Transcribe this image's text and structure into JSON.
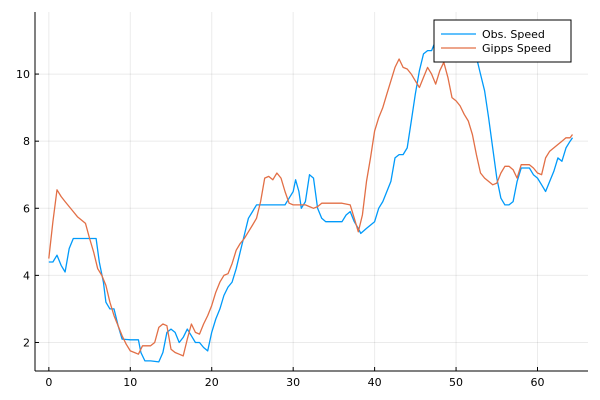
{
  "chart_data": {
    "type": "line",
    "title": "",
    "xlabel": "",
    "ylabel": "",
    "xlim": [
      -1.7,
      66.2
    ],
    "ylim": [
      1.15,
      11.85
    ],
    "x_ticks": [
      0,
      10,
      20,
      30,
      40,
      50,
      60
    ],
    "y_ticks": [
      2,
      4,
      6,
      8,
      10
    ],
    "x_tick_labels": [
      "0",
      "10",
      "20",
      "30",
      "40",
      "50",
      "60"
    ],
    "y_tick_labels": [
      "2",
      "4",
      "6",
      "8",
      "10"
    ],
    "grid": true,
    "legend_position": "top-right",
    "series": [
      {
        "name": "Obs. Speed",
        "color": "#009AFA",
        "points": [
          [
            0,
            4.4
          ],
          [
            0.5,
            4.4
          ],
          [
            1,
            4.6
          ],
          [
            1.5,
            4.3
          ],
          [
            2,
            4.1
          ],
          [
            2.5,
            4.8
          ],
          [
            3,
            5.1
          ],
          [
            4,
            5.1
          ],
          [
            5,
            5.1
          ],
          [
            5.8,
            5.1
          ],
          [
            6.2,
            4.4
          ],
          [
            6.7,
            3.8
          ],
          [
            7,
            3.2
          ],
          [
            7.5,
            3.0
          ],
          [
            8,
            3.0
          ],
          [
            8.5,
            2.5
          ],
          [
            9,
            2.1
          ],
          [
            10,
            2.08
          ],
          [
            11,
            2.08
          ],
          [
            11.3,
            1.7
          ],
          [
            11.8,
            1.45
          ],
          [
            12.5,
            1.45
          ],
          [
            13.5,
            1.42
          ],
          [
            14,
            1.7
          ],
          [
            14.5,
            2.3
          ],
          [
            15,
            2.4
          ],
          [
            15.5,
            2.3
          ],
          [
            16,
            2.0
          ],
          [
            16.5,
            2.15
          ],
          [
            17,
            2.4
          ],
          [
            17.5,
            2.2
          ],
          [
            18,
            2.0
          ],
          [
            18.5,
            2.0
          ],
          [
            19,
            1.85
          ],
          [
            19.5,
            1.75
          ],
          [
            20,
            2.3
          ],
          [
            20.5,
            2.7
          ],
          [
            21,
            3.0
          ],
          [
            21.5,
            3.4
          ],
          [
            22,
            3.65
          ],
          [
            22.5,
            3.8
          ],
          [
            23,
            4.2
          ],
          [
            23.5,
            4.7
          ],
          [
            24,
            5.2
          ],
          [
            24.5,
            5.7
          ],
          [
            25,
            5.9
          ],
          [
            25.5,
            6.1
          ],
          [
            26,
            6.1
          ],
          [
            27,
            6.1
          ],
          [
            28,
            6.1
          ],
          [
            29,
            6.1
          ],
          [
            29.5,
            6.3
          ],
          [
            30,
            6.5
          ],
          [
            30.3,
            6.85
          ],
          [
            30.7,
            6.5
          ],
          [
            31,
            6.0
          ],
          [
            31.5,
            6.2
          ],
          [
            32,
            7.0
          ],
          [
            32.5,
            6.9
          ],
          [
            33,
            6.0
          ],
          [
            33.5,
            5.7
          ],
          [
            34,
            5.6
          ],
          [
            35,
            5.6
          ],
          [
            36,
            5.6
          ],
          [
            36.5,
            5.8
          ],
          [
            37,
            5.9
          ],
          [
            37.5,
            5.6
          ],
          [
            38,
            5.4
          ],
          [
            38.3,
            5.25
          ],
          [
            39,
            5.4
          ],
          [
            40,
            5.6
          ],
          [
            40.5,
            6.0
          ],
          [
            41,
            6.2
          ],
          [
            42,
            6.8
          ],
          [
            42.5,
            7.5
          ],
          [
            43,
            7.6
          ],
          [
            43.5,
            7.6
          ],
          [
            44,
            7.8
          ],
          [
            44.5,
            8.6
          ],
          [
            45,
            9.4
          ],
          [
            45.5,
            10.1
          ],
          [
            46,
            10.6
          ],
          [
            46.5,
            10.7
          ],
          [
            47,
            10.7
          ],
          [
            47.5,
            11.0
          ],
          [
            48,
            11.5
          ],
          [
            48.3,
            11.6
          ],
          [
            49,
            11.5
          ],
          [
            50,
            11.3
          ],
          [
            51,
            11.3
          ],
          [
            52,
            11.0
          ],
          [
            53,
            10.0
          ],
          [
            53.5,
            9.5
          ],
          [
            54,
            8.7
          ],
          [
            54.5,
            7.8
          ],
          [
            55,
            6.9
          ],
          [
            55.5,
            6.3
          ],
          [
            56,
            6.1
          ],
          [
            56.5,
            6.1
          ],
          [
            57,
            6.2
          ],
          [
            57.5,
            6.8
          ],
          [
            58,
            7.2
          ],
          [
            58.5,
            7.2
          ],
          [
            59,
            7.2
          ],
          [
            59.5,
            7.0
          ],
          [
            60,
            6.9
          ],
          [
            60.5,
            6.7
          ],
          [
            61,
            6.5
          ],
          [
            61.5,
            6.8
          ],
          [
            62,
            7.1
          ],
          [
            62.5,
            7.5
          ],
          [
            63,
            7.4
          ],
          [
            63.5,
            7.8
          ],
          [
            64,
            8.0
          ],
          [
            64.3,
            8.1
          ]
        ]
      },
      {
        "name": "Gipps Speed",
        "color": "#E26F46",
        "points": [
          [
            0,
            4.5
          ],
          [
            0.5,
            5.6
          ],
          [
            1,
            6.55
          ],
          [
            1.5,
            6.35
          ],
          [
            2,
            6.2
          ],
          [
            2.5,
            6.05
          ],
          [
            3,
            5.9
          ],
          [
            3.5,
            5.75
          ],
          [
            4,
            5.65
          ],
          [
            4.5,
            5.55
          ],
          [
            5,
            5.1
          ],
          [
            5.5,
            4.7
          ],
          [
            6,
            4.2
          ],
          [
            6.5,
            4.0
          ],
          [
            7,
            3.7
          ],
          [
            7.5,
            3.2
          ],
          [
            8,
            2.8
          ],
          [
            8.5,
            2.5
          ],
          [
            9,
            2.2
          ],
          [
            9.5,
            1.95
          ],
          [
            10,
            1.75
          ],
          [
            10.5,
            1.7
          ],
          [
            11,
            1.65
          ],
          [
            11.5,
            1.9
          ],
          [
            12,
            1.9
          ],
          [
            12.5,
            1.9
          ],
          [
            13,
            2.0
          ],
          [
            13.5,
            2.45
          ],
          [
            14,
            2.55
          ],
          [
            14.5,
            2.5
          ],
          [
            15,
            1.8
          ],
          [
            15.5,
            1.7
          ],
          [
            16,
            1.65
          ],
          [
            16.5,
            1.6
          ],
          [
            17,
            2.1
          ],
          [
            17.5,
            2.55
          ],
          [
            18,
            2.3
          ],
          [
            18.5,
            2.25
          ],
          [
            19,
            2.55
          ],
          [
            19.5,
            2.8
          ],
          [
            20,
            3.1
          ],
          [
            20.5,
            3.5
          ],
          [
            21,
            3.8
          ],
          [
            21.5,
            4.0
          ],
          [
            22,
            4.05
          ],
          [
            22.5,
            4.35
          ],
          [
            23,
            4.75
          ],
          [
            23.5,
            4.95
          ],
          [
            24,
            5.1
          ],
          [
            24.5,
            5.3
          ],
          [
            25,
            5.5
          ],
          [
            25.5,
            5.7
          ],
          [
            26,
            6.2
          ],
          [
            26.5,
            6.9
          ],
          [
            27,
            6.95
          ],
          [
            27.5,
            6.85
          ],
          [
            28,
            7.05
          ],
          [
            28.5,
            6.9
          ],
          [
            29,
            6.5
          ],
          [
            29.5,
            6.15
          ],
          [
            30,
            6.1
          ],
          [
            31,
            6.1
          ],
          [
            31.5,
            6.1
          ],
          [
            32,
            6.05
          ],
          [
            32.5,
            6.0
          ],
          [
            33,
            6.05
          ],
          [
            33.5,
            6.15
          ],
          [
            34,
            6.15
          ],
          [
            35,
            6.15
          ],
          [
            36,
            6.15
          ],
          [
            37,
            6.1
          ],
          [
            37.5,
            5.7
          ],
          [
            38,
            5.3
          ],
          [
            38.5,
            5.8
          ],
          [
            39,
            6.8
          ],
          [
            39.5,
            7.5
          ],
          [
            40,
            8.3
          ],
          [
            40.5,
            8.7
          ],
          [
            41,
            9.0
          ],
          [
            41.5,
            9.4
          ],
          [
            42,
            9.8
          ],
          [
            42.5,
            10.2
          ],
          [
            43,
            10.45
          ],
          [
            43.5,
            10.2
          ],
          [
            44,
            10.15
          ],
          [
            44.5,
            10.0
          ],
          [
            45,
            9.8
          ],
          [
            45.5,
            9.6
          ],
          [
            46,
            9.9
          ],
          [
            46.5,
            10.2
          ],
          [
            47,
            10.0
          ],
          [
            47.5,
            9.7
          ],
          [
            48,
            10.1
          ],
          [
            48.5,
            10.35
          ],
          [
            49,
            9.9
          ],
          [
            49.5,
            9.3
          ],
          [
            50,
            9.2
          ],
          [
            50.5,
            9.05
          ],
          [
            51,
            8.8
          ],
          [
            51.5,
            8.6
          ],
          [
            52,
            8.2
          ],
          [
            52.5,
            7.6
          ],
          [
            53,
            7.05
          ],
          [
            53.5,
            6.9
          ],
          [
            54,
            6.8
          ],
          [
            54.5,
            6.7
          ],
          [
            55,
            6.75
          ],
          [
            55.5,
            7.05
          ],
          [
            56,
            7.25
          ],
          [
            56.5,
            7.25
          ],
          [
            57,
            7.15
          ],
          [
            57.5,
            6.9
          ],
          [
            58,
            7.3
          ],
          [
            58.5,
            7.3
          ],
          [
            59,
            7.3
          ],
          [
            59.5,
            7.2
          ],
          [
            60,
            7.05
          ],
          [
            60.5,
            7.0
          ],
          [
            61,
            7.5
          ],
          [
            61.5,
            7.7
          ],
          [
            62,
            7.8
          ],
          [
            62.5,
            7.9
          ],
          [
            63,
            8.0
          ],
          [
            63.5,
            8.1
          ],
          [
            64,
            8.1
          ],
          [
            64.3,
            8.2
          ]
        ]
      }
    ]
  }
}
